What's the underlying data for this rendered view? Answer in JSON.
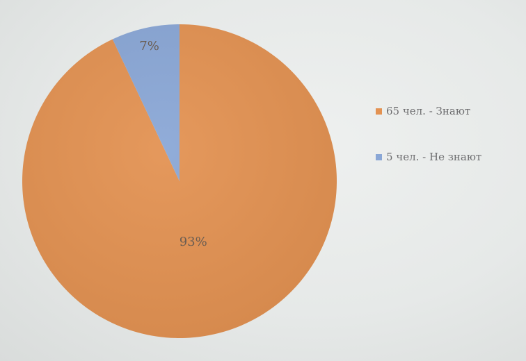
{
  "chart_data": {
    "type": "pie",
    "title": "",
    "slices": [
      {
        "label": "65 чел. - Знают",
        "value": 93,
        "display": "93%",
        "color": "#e39252"
      },
      {
        "label": "5 чел. - Не знают",
        "value": 7,
        "display": "7%",
        "color": "#8aa7d6"
      }
    ],
    "legend_position": "right"
  }
}
